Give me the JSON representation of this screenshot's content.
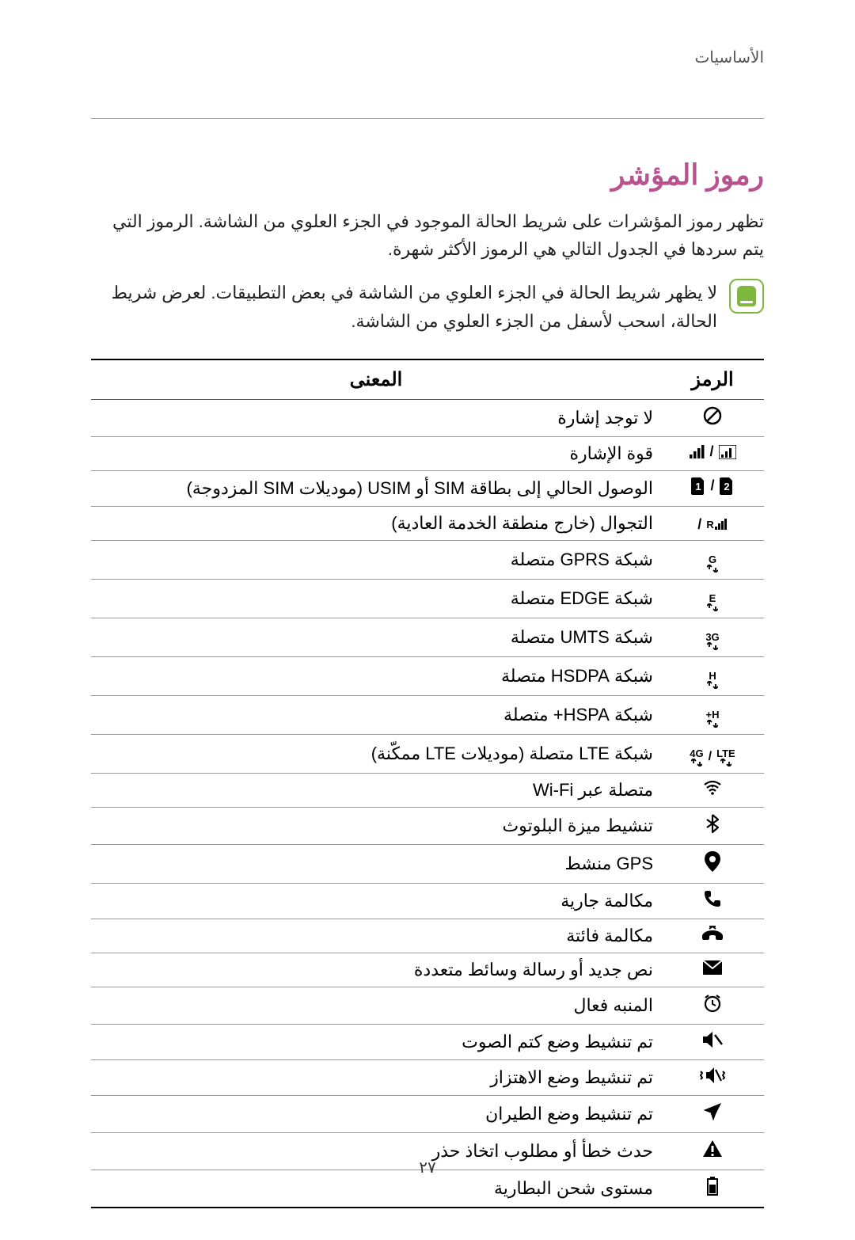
{
  "breadcrumb": "الأساسيات",
  "section_title": "رموز المؤشر",
  "intro": "تظهر رموز المؤشرات على شريط الحالة الموجود في الجزء العلوي من الشاشة. الرموز التي يتم سردها في الجدول التالي هي الرموز الأكثر شهرة.",
  "note": "لا يظهر شريط الحالة في الجزء العلوي من الشاشة في بعض التطبيقات. لعرض شريط الحالة، اسحب لأسفل من الجزء العلوي من الشاشة.",
  "table": {
    "header_icon": "الرمز",
    "header_meaning": "المعنى",
    "rows": [
      {
        "icon_key": "no-signal",
        "meaning": "لا توجد إشارة"
      },
      {
        "icon_key": "signal-strength",
        "meaning": "قوة الإشارة"
      },
      {
        "icon_key": "sim-access",
        "meaning": "الوصول الحالي إلى بطاقة SIM أو USIM (موديلات SIM المزدوجة)"
      },
      {
        "icon_key": "roaming",
        "meaning": "التجوال (خارج منطقة الخدمة العادية)"
      },
      {
        "icon_key": "gprs",
        "meaning": "شبكة GPRS متصلة"
      },
      {
        "icon_key": "edge",
        "meaning": "شبكة EDGE متصلة"
      },
      {
        "icon_key": "umts",
        "meaning": "شبكة UMTS متصلة"
      },
      {
        "icon_key": "hsdpa",
        "meaning": "شبكة HSDPA متصلة"
      },
      {
        "icon_key": "hspa-plus",
        "meaning": "شبكة HSPA+ متصلة"
      },
      {
        "icon_key": "lte",
        "meaning": "شبكة LTE متصلة (موديلات LTE ممكّنة)"
      },
      {
        "icon_key": "wifi",
        "meaning": "متصلة عبر Wi-Fi"
      },
      {
        "icon_key": "bluetooth",
        "meaning": "تنشيط ميزة البلوتوث"
      },
      {
        "icon_key": "gps",
        "meaning": "GPS منشط"
      },
      {
        "icon_key": "call",
        "meaning": "مكالمة جارية"
      },
      {
        "icon_key": "missed-call",
        "meaning": "مكالمة فائتة"
      },
      {
        "icon_key": "message",
        "meaning": "نص جديد أو رسالة وسائط متعددة"
      },
      {
        "icon_key": "alarm",
        "meaning": "المنبه فعال"
      },
      {
        "icon_key": "mute",
        "meaning": "تم تنشيط وضع كتم الصوت"
      },
      {
        "icon_key": "vibrate",
        "meaning": "تم تنشيط وضع الاهتزاز"
      },
      {
        "icon_key": "airplane",
        "meaning": "تم تنشيط وضع الطيران"
      },
      {
        "icon_key": "warning",
        "meaning": "حدث خطأ أو مطلوب اتخاذ حذر"
      },
      {
        "icon_key": "battery",
        "meaning": "مستوى شحن البطارية"
      }
    ]
  },
  "net_labels": {
    "gprs": "G",
    "edge": "E",
    "umts": "3G",
    "hsdpa": "H",
    "hspa_plus": "H+",
    "lte_4g": "4G",
    "lte": "LTE",
    "roaming": "R"
  },
  "sim_labels": {
    "one": "1",
    "two": "2"
  },
  "page_number": "٢٧",
  "colors": {
    "title": "#b8538f",
    "note_border": "#7fb83f",
    "text": "#222222",
    "rule": "#999999"
  }
}
